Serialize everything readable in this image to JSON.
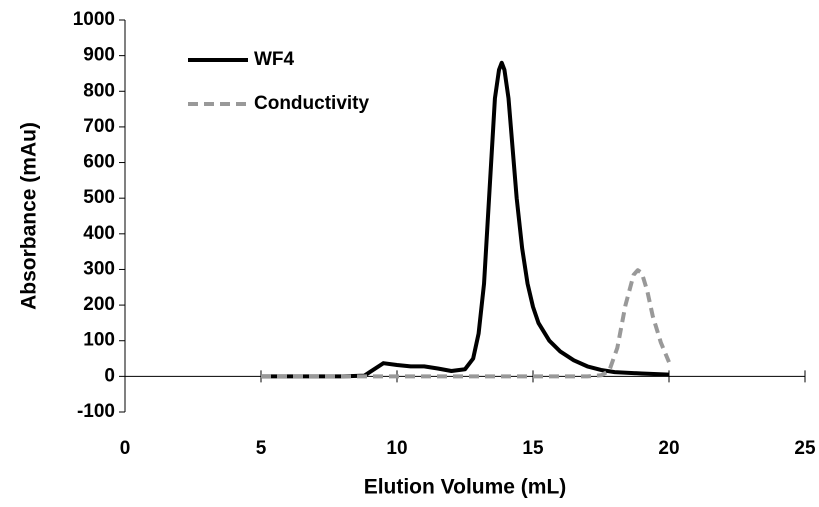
{
  "chart_data": {
    "type": "line",
    "x_label": "Elution Volume (mL)",
    "y_label": "Absorbance (mAu)",
    "xlim": [
      0,
      25
    ],
    "xticks": [
      0,
      5,
      10,
      15,
      20,
      25
    ],
    "ylim": [
      -100,
      1000
    ],
    "yticks": [
      -100,
      0,
      100,
      200,
      300,
      400,
      500,
      600,
      700,
      800,
      900,
      1000
    ],
    "grid": false,
    "legend": "upper-left",
    "series": [
      {
        "name": "WF4",
        "color": "#000000",
        "line_style": "solid",
        "x": [
          5,
          6,
          7,
          8,
          8.8,
          9,
          9.5,
          10,
          10.5,
          11,
          11.5,
          12,
          12.5,
          12.8,
          13,
          13.2,
          13.4,
          13.6,
          13.75,
          13.85,
          13.95,
          14.1,
          14.25,
          14.4,
          14.6,
          14.8,
          15,
          15.2,
          15.6,
          16,
          16.5,
          17,
          17.5,
          18,
          19,
          20
        ],
        "values": [
          0,
          0,
          0,
          0,
          2,
          12,
          37,
          32,
          28,
          28,
          22,
          15,
          20,
          50,
          120,
          260,
          520,
          780,
          860,
          880,
          860,
          780,
          640,
          500,
          360,
          260,
          195,
          150,
          100,
          70,
          45,
          28,
          18,
          12,
          8,
          5
        ]
      },
      {
        "name": "Conductivity",
        "color": "#999999",
        "line_style": "dashed",
        "x": [
          5,
          8,
          12,
          15,
          17,
          17.5,
          17.8,
          18.1,
          18.4,
          18.7,
          18.85,
          19.0,
          19.2,
          19.4,
          19.7,
          20
        ],
        "values": [
          0,
          0,
          0,
          0,
          0,
          3,
          15,
          80,
          200,
          285,
          298,
          290,
          240,
          170,
          95,
          40
        ]
      }
    ]
  }
}
